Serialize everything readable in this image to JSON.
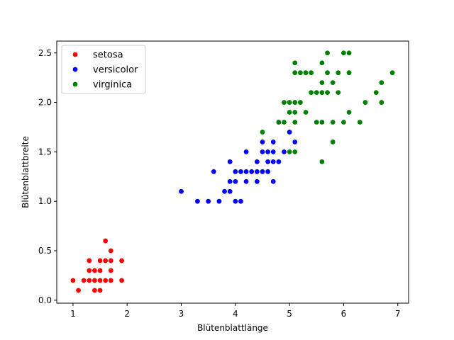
{
  "chart_data": {
    "type": "scatter",
    "xlabel": "Blütenblattlänge",
    "ylabel": "Blütenblattbreite",
    "xlim": [
      0.7,
      7.2
    ],
    "ylim": [
      -0.03,
      2.62
    ],
    "xticks": [
      1,
      2,
      3,
      4,
      5,
      6,
      7
    ],
    "yticks": [
      0.0,
      0.5,
      1.0,
      1.5,
      2.0,
      2.5
    ],
    "xtick_labels": [
      "1",
      "2",
      "3",
      "4",
      "5",
      "6",
      "7"
    ],
    "ytick_labels": [
      "0.0",
      "0.5",
      "1.0",
      "1.5",
      "2.0",
      "2.5"
    ],
    "grid": false,
    "legend_position": "upper-left",
    "series": [
      {
        "name": "setosa",
        "color": "#ff0000",
        "points": [
          [
            1.0,
            0.2
          ],
          [
            1.1,
            0.1
          ],
          [
            1.2,
            0.2
          ],
          [
            1.3,
            0.2
          ],
          [
            1.3,
            0.3
          ],
          [
            1.3,
            0.4
          ],
          [
            1.4,
            0.1
          ],
          [
            1.4,
            0.2
          ],
          [
            1.4,
            0.3
          ],
          [
            1.5,
            0.1
          ],
          [
            1.5,
            0.2
          ],
          [
            1.5,
            0.3
          ],
          [
            1.5,
            0.4
          ],
          [
            1.6,
            0.2
          ],
          [
            1.6,
            0.4
          ],
          [
            1.6,
            0.6
          ],
          [
            1.7,
            0.2
          ],
          [
            1.7,
            0.3
          ],
          [
            1.7,
            0.4
          ],
          [
            1.7,
            0.5
          ],
          [
            1.9,
            0.2
          ],
          [
            1.9,
            0.4
          ]
        ]
      },
      {
        "name": "versicolor",
        "color": "#0000ff",
        "points": [
          [
            3.0,
            1.1
          ],
          [
            3.3,
            1.0
          ],
          [
            3.5,
            1.0
          ],
          [
            3.6,
            1.3
          ],
          [
            3.7,
            1.0
          ],
          [
            3.8,
            1.1
          ],
          [
            3.9,
            1.1
          ],
          [
            3.9,
            1.2
          ],
          [
            3.9,
            1.4
          ],
          [
            4.0,
            1.0
          ],
          [
            4.0,
            1.2
          ],
          [
            4.0,
            1.3
          ],
          [
            4.1,
            1.0
          ],
          [
            4.1,
            1.3
          ],
          [
            4.2,
            1.2
          ],
          [
            4.2,
            1.3
          ],
          [
            4.2,
            1.5
          ],
          [
            4.3,
            1.3
          ],
          [
            4.4,
            1.2
          ],
          [
            4.4,
            1.3
          ],
          [
            4.4,
            1.4
          ],
          [
            4.5,
            1.3
          ],
          [
            4.5,
            1.5
          ],
          [
            4.5,
            1.6
          ],
          [
            4.6,
            1.3
          ],
          [
            4.6,
            1.4
          ],
          [
            4.6,
            1.5
          ],
          [
            4.7,
            1.2
          ],
          [
            4.7,
            1.4
          ],
          [
            4.7,
            1.5
          ],
          [
            4.7,
            1.6
          ],
          [
            4.8,
            1.4
          ],
          [
            4.8,
            1.8
          ],
          [
            4.9,
            1.5
          ],
          [
            5.0,
            1.7
          ],
          [
            5.1,
            1.6
          ]
        ]
      },
      {
        "name": "virginica",
        "color": "#008000",
        "points": [
          [
            4.5,
            1.7
          ],
          [
            4.8,
            1.8
          ],
          [
            4.9,
            1.8
          ],
          [
            4.9,
            2.0
          ],
          [
            5.0,
            1.5
          ],
          [
            5.0,
            2.0
          ],
          [
            5.0,
            1.9
          ],
          [
            5.1,
            1.5
          ],
          [
            5.1,
            1.8
          ],
          [
            5.1,
            1.9
          ],
          [
            5.1,
            2.0
          ],
          [
            5.1,
            2.3
          ],
          [
            5.1,
            2.4
          ],
          [
            5.2,
            2.0
          ],
          [
            5.2,
            2.3
          ],
          [
            5.3,
            1.9
          ],
          [
            5.3,
            2.3
          ],
          [
            5.4,
            2.1
          ],
          [
            5.4,
            2.3
          ],
          [
            5.5,
            1.8
          ],
          [
            5.5,
            2.1
          ],
          [
            5.6,
            1.4
          ],
          [
            5.6,
            1.8
          ],
          [
            5.6,
            2.1
          ],
          [
            5.6,
            2.2
          ],
          [
            5.6,
            2.4
          ],
          [
            5.7,
            2.1
          ],
          [
            5.7,
            2.3
          ],
          [
            5.7,
            2.5
          ],
          [
            5.8,
            1.6
          ],
          [
            5.8,
            1.8
          ],
          [
            5.8,
            2.2
          ],
          [
            5.9,
            2.1
          ],
          [
            5.9,
            2.3
          ],
          [
            6.0,
            1.8
          ],
          [
            6.0,
            2.5
          ],
          [
            6.1,
            1.9
          ],
          [
            6.1,
            2.3
          ],
          [
            6.1,
            2.5
          ],
          [
            6.3,
            1.8
          ],
          [
            6.4,
            2.0
          ],
          [
            6.6,
            2.1
          ],
          [
            6.7,
            2.0
          ],
          [
            6.7,
            2.2
          ],
          [
            6.9,
            2.3
          ]
        ]
      }
    ]
  }
}
